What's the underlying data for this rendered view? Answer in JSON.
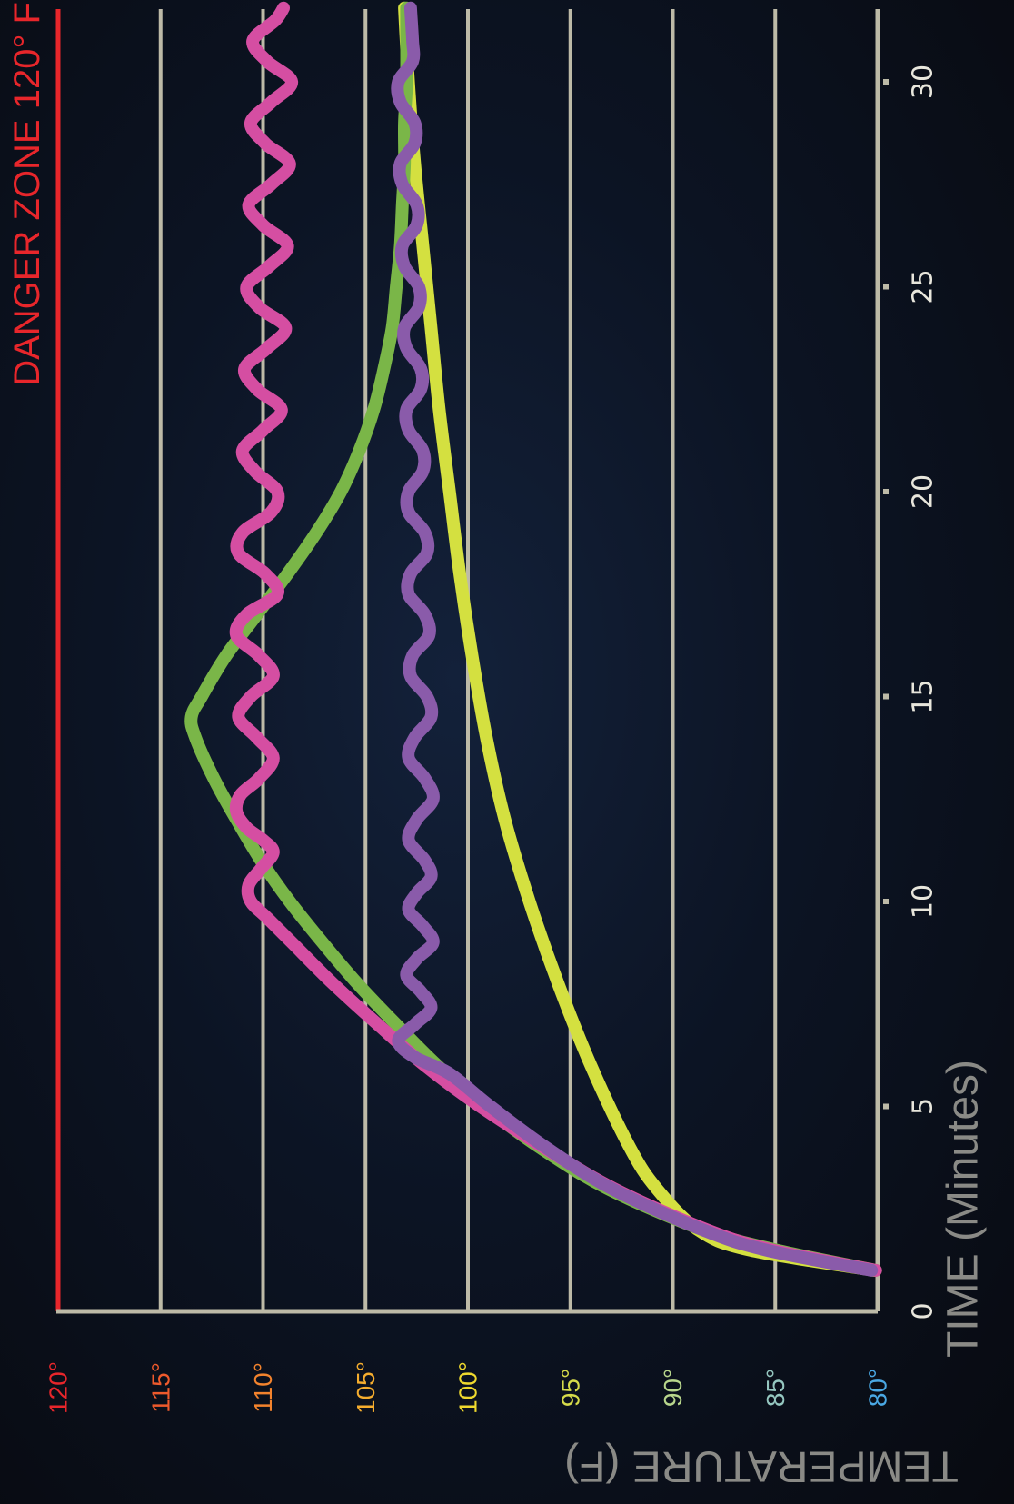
{
  "chart_data": {
    "type": "line",
    "ylabel": "TEMPERATURE (F)",
    "xlabel": "TIME (Minutes)",
    "x_ticks": [
      0,
      5,
      10,
      15,
      20,
      25,
      30
    ],
    "y_ticks": [
      {
        "value": 120,
        "label": "120°",
        "color": "#e8262b"
      },
      {
        "value": 115,
        "label": "115°",
        "color": "#ee5a2c"
      },
      {
        "value": 110,
        "label": "110°",
        "color": "#f3832d"
      },
      {
        "value": 105,
        "label": "105°",
        "color": "#f5ad2e"
      },
      {
        "value": 100,
        "label": "100°",
        "color": "#efd92e"
      },
      {
        "value": 95,
        "label": "95°",
        "color": "#d6db4a"
      },
      {
        "value": 90,
        "label": "90°",
        "color": "#b8d68c"
      },
      {
        "value": 85,
        "label": "85°",
        "color": "#95c7c0"
      },
      {
        "value": 80,
        "label": "80°",
        "color": "#4aa8e4"
      }
    ],
    "xlim": [
      0,
      32
    ],
    "ylim": [
      80,
      120
    ],
    "grid": true,
    "orientation": "rotated-90-clockwise",
    "danger_line": {
      "value": 120,
      "label": "DANGER ZONE 120° F",
      "color": "#e8262b"
    },
    "axis_color": "#bdbaa7",
    "series": [
      {
        "color": "#d4e040",
        "x": [
          1,
          1.5,
          2,
          3,
          4,
          6,
          8,
          10,
          12,
          14,
          16,
          18,
          20,
          22,
          24,
          26,
          28,
          30,
          31.8
        ],
        "y": [
          80.2,
          86.3,
          88.8,
          90.8,
          92.1,
          94,
          95.6,
          97,
          98.2,
          99.1,
          99.8,
          100.4,
          100.9,
          101.4,
          101.8,
          102.2,
          102.6,
          102.9,
          103.1
        ]
      },
      {
        "color": "#7ab648",
        "x": [
          1,
          1.5,
          2,
          3,
          4,
          5,
          6,
          7,
          8,
          9,
          10,
          11,
          12,
          13,
          14,
          14.5,
          15,
          16,
          17,
          18,
          19,
          20,
          21,
          22,
          23,
          24,
          25,
          26,
          27,
          28,
          29,
          30,
          31.8
        ],
        "y": [
          80.1,
          85,
          88.6,
          93.2,
          96.5,
          99.2,
          101.5,
          103.5,
          105.4,
          107.1,
          108.7,
          110.1,
          111.3,
          112.4,
          113.3,
          113.5,
          113,
          111.8,
          110.3,
          108.8,
          107.4,
          106.2,
          105.3,
          104.6,
          104.1,
          103.7,
          103.5,
          103.3,
          103.2,
          103.1,
          103.1,
          103,
          103
        ]
      },
      {
        "color": "#d54ea2",
        "x": [
          1,
          1.5,
          2,
          3,
          4,
          5,
          6,
          7,
          8,
          9,
          9.6,
          10,
          10.4,
          10.8,
          11.2,
          11.5,
          11.8,
          12.2,
          12.6,
          13,
          13.5,
          14,
          14.5,
          15,
          15.5,
          16,
          16.5,
          17,
          17.5,
          18,
          18.5,
          19,
          19.5,
          20,
          20.5,
          21,
          21.5,
          22,
          22.5,
          23,
          23.5,
          24,
          24.5,
          25,
          25.5,
          26,
          26.5,
          27,
          27.5,
          28,
          28.5,
          29,
          29.5,
          30,
          30.5,
          31,
          31.5,
          31.8
        ],
        "y": [
          80.1,
          85.2,
          88.4,
          92.9,
          96.3,
          99.4,
          102.1,
          104.4,
          106.6,
          108.6,
          109.8,
          110.6,
          110.7,
          110.1,
          109.5,
          110,
          110.8,
          111.3,
          111.1,
          110.2,
          109.5,
          110.3,
          111.2,
          110.6,
          109.5,
          110.2,
          111.3,
          110.8,
          109.3,
          109.9,
          111.2,
          111,
          109.6,
          109.3,
          110.4,
          111,
          110,
          109.1,
          110.3,
          110.9,
          109.8,
          108.9,
          110.2,
          110.8,
          109.7,
          108.8,
          110,
          110.7,
          109.6,
          108.7,
          109.9,
          110.6,
          109.6,
          108.6,
          109.8,
          110.5,
          109.4,
          109
        ]
      },
      {
        "color": "#8a5baa",
        "x": [
          1,
          1.5,
          2,
          3,
          4,
          5,
          5.8,
          6.2,
          6.6,
          7,
          7.4,
          7.8,
          8.2,
          8.6,
          9,
          9.4,
          9.8,
          10.2,
          10.6,
          11,
          11.5,
          12,
          12.5,
          13,
          13.5,
          14,
          14.5,
          15,
          15.5,
          16,
          16.5,
          17,
          17.5,
          18,
          18.5,
          19,
          19.5,
          20,
          20.5,
          21,
          21.5,
          22,
          22.5,
          23,
          23.5,
          24,
          24.5,
          25,
          25.5,
          26,
          26.5,
          27,
          27.5,
          28,
          28.5,
          29,
          29.5,
          30,
          30.5,
          31,
          31.8
        ],
        "y": [
          80.3,
          85.5,
          88.6,
          93,
          96.2,
          98.9,
          100.9,
          102.6,
          103.4,
          102.6,
          101.8,
          102.3,
          103,
          102.5,
          101.7,
          102.2,
          102.9,
          102.5,
          101.8,
          102.1,
          102.9,
          102.5,
          101.7,
          102.1,
          102.9,
          102.6,
          101.8,
          102,
          102.8,
          102.7,
          101.9,
          102.1,
          102.9,
          102.8,
          102,
          102.1,
          102.9,
          102.9,
          102.2,
          102.2,
          102.9,
          103,
          102.3,
          102.3,
          103,
          103.1,
          102.4,
          102.4,
          103.1,
          103.2,
          102.5,
          102.5,
          103.2,
          103.3,
          102.6,
          102.6,
          103.3,
          103.4,
          102.7,
          102.7,
          102.8
        ]
      }
    ]
  }
}
